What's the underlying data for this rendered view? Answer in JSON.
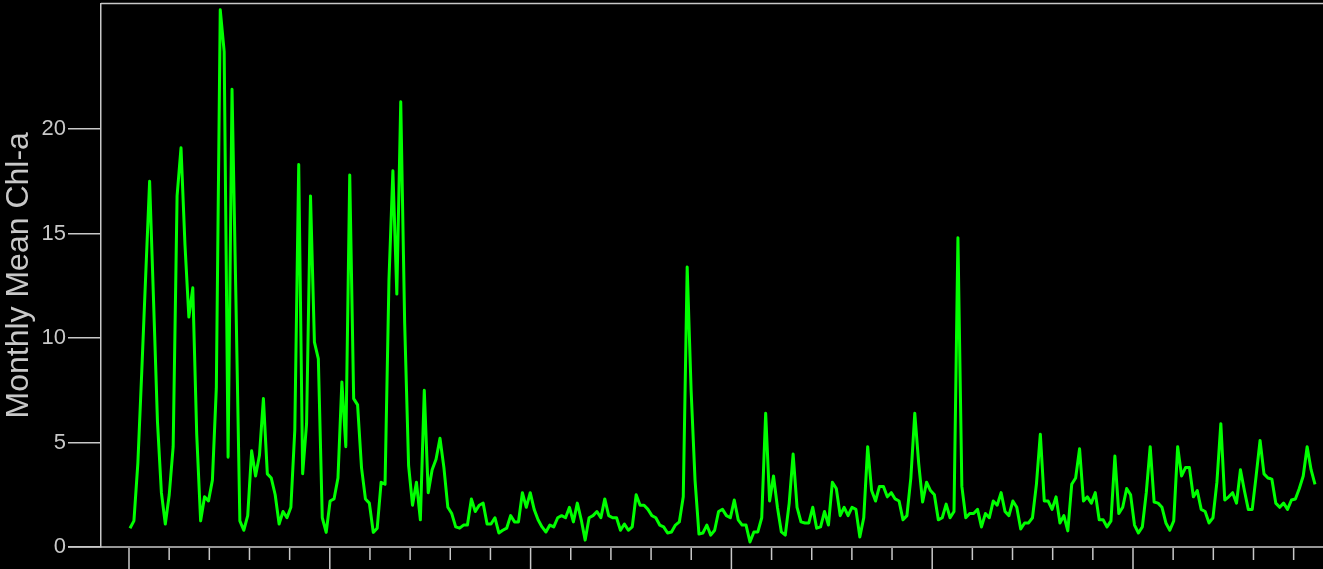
{
  "chart_data": {
    "type": "line",
    "ylabel": "Monthly Mean Chl-a",
    "color": "#00ff00",
    "marker": "none",
    "tick_labels": "y",
    "ylim": [
      0,
      26
    ],
    "categories": [
      null,
      null,
      null,
      null,
      null,
      null,
      null,
      null,
      null,
      null,
      null,
      null,
      null,
      null,
      null,
      null,
      null,
      null,
      null,
      null,
      null,
      null,
      null,
      null,
      null,
      null,
      null,
      null,
      null,
      null,
      null,
      null,
      null,
      null,
      null,
      null,
      null,
      null,
      null,
      null,
      null,
      null,
      null,
      null,
      null,
      null,
      null,
      null,
      null,
      null,
      null,
      null,
      null,
      null,
      null,
      null,
      null,
      null,
      null,
      null,
      null,
      null,
      null,
      null,
      null,
      null,
      null,
      null,
      null,
      null,
      null,
      null,
      null,
      null,
      null,
      null,
      null,
      null,
      null,
      null,
      null,
      null,
      null,
      null,
      null,
      null,
      null,
      null,
      null,
      null,
      null,
      null,
      null,
      null,
      null,
      null,
      null,
      null,
      null,
      null,
      null,
      null,
      null,
      null,
      null,
      null,
      null,
      null,
      null,
      null,
      null,
      null,
      null,
      null,
      null,
      null,
      null,
      null,
      null,
      null,
      null,
      null,
      null,
      null,
      null,
      null,
      null,
      null,
      null,
      null,
      null,
      null,
      null,
      null,
      null,
      null,
      null,
      null,
      null,
      null,
      null,
      null,
      null,
      null,
      null,
      null,
      null,
      null,
      null,
      null,
      null,
      null,
      null,
      null,
      null,
      null,
      null,
      null,
      null,
      null,
      null,
      null,
      null,
      null,
      null,
      null,
      null,
      null,
      null,
      null,
      null,
      null,
      null,
      null,
      null,
      null,
      null,
      null,
      null,
      null,
      null,
      null,
      null,
      null,
      null,
      null,
      null,
      null,
      null,
      null,
      null,
      null,
      null,
      null,
      null,
      null,
      null,
      null,
      null,
      null,
      null,
      null,
      null,
      null,
      null,
      null,
      null,
      null,
      null,
      null,
      null,
      null,
      null,
      null,
      null,
      null,
      null,
      null,
      null,
      null,
      null,
      null,
      null,
      null,
      null,
      null,
      null,
      null,
      null,
      null,
      null,
      null,
      null,
      null,
      null,
      null,
      null,
      null,
      null,
      null,
      null,
      null,
      null,
      null,
      null,
      null,
      null,
      null,
      null,
      null,
      null,
      null,
      null,
      null,
      null,
      null,
      null,
      null,
      null,
      null,
      null,
      null,
      null,
      null,
      null,
      null,
      null,
      null,
      null,
      null,
      null,
      null,
      null,
      null,
      null,
      null,
      null,
      null,
      null,
      null,
      null,
      null,
      null,
      null,
      null,
      null,
      null,
      null,
      null,
      null,
      null,
      null,
      null,
      null,
      null,
      null,
      null,
      null,
      null,
      null,
      null,
      null,
      null
    ],
    "yticks": [
      0,
      5,
      10,
      15,
      20
    ],
    "values": [
      0.9,
      1.25,
      4.0,
      8.4,
      13,
      17.5,
      11.8,
      6.0,
      2.6,
      1.1,
      2.5,
      4.8,
      16.8,
      19.1,
      14.5,
      11,
      12.4,
      5.4,
      1.25,
      2.4,
      2.2,
      3.2,
      7.6,
      25.7,
      23.7,
      4.3,
      21.9,
      11.8,
      1.25,
      0.8,
      1.5,
      4.6,
      3.4,
      4.4,
      7.1,
      3.5,
      3.3,
      2.5,
      1.1,
      1.7,
      1.4,
      1.9,
      5.6,
      18.3,
      3.5,
      5.9,
      16.8,
      9.8,
      9.0,
      1.4,
      0.7,
      2.2,
      2.3,
      3.3,
      7.9,
      4.8,
      17.8,
      7.1,
      6.8,
      3.8,
      2.3,
      2.1,
      0.7,
      0.9,
      3.1,
      3.0,
      12.8,
      18.0,
      12.1,
      21.3,
      10.7,
      3.9,
      2.0,
      3.1,
      1.3,
      7.5,
      2.6,
      3.7,
      4.2,
      5.2,
      3.8,
      1.9,
      1.6,
      0.96,
      0.9,
      1.05,
      1.05,
      2.3,
      1.7,
      2.0,
      2.1,
      1.1,
      1.1,
      1.4,
      0.67,
      0.8,
      0.9,
      1.5,
      1.2,
      1.2,
      2.6,
      1.9,
      2.6,
      1.8,
      1.3,
      0.96,
      0.72,
      1.05,
      0.96,
      1.4,
      1.5,
      1.4,
      1.9,
      1.2,
      2.1,
      1.3,
      0.33,
      1.4,
      1.5,
      1.7,
      1.4,
      2.3,
      1.5,
      1.4,
      1.4,
      0.8,
      1.1,
      0.8,
      0.96,
      2.5,
      2.0,
      2.0,
      1.8,
      1.5,
      1.4,
      1.05,
      0.96,
      0.67,
      0.72,
      1.05,
      1.2,
      2.4,
      13.4,
      7.5,
      3.2,
      0.62,
      0.67,
      1.05,
      0.57,
      0.8,
      1.7,
      1.8,
      1.5,
      1.4,
      2.25,
      1.3,
      1.05,
      1.05,
      0.24,
      0.72,
      0.72,
      1.4,
      6.4,
      2.2,
      3.4,
      1.9,
      0.72,
      0.57,
      2.1,
      4.45,
      1.9,
      1.2,
      1.15,
      1.15,
      1.9,
      0.9,
      0.96,
      1.7,
      1.05,
      3.1,
      2.8,
      1.5,
      1.9,
      1.5,
      1.9,
      1.8,
      0.48,
      1.4,
      4.8,
      2.7,
      2.2,
      2.9,
      2.9,
      2.4,
      2.6,
      2.3,
      2.2,
      1.3,
      1.5,
      3.3,
      6.4,
      4.0,
      2.15,
      3.1,
      2.7,
      2.5,
      1.3,
      1.4,
      2.05,
      1.4,
      1.7,
      14.8,
      2.9,
      1.4,
      1.6,
      1.6,
      1.8,
      0.96,
      1.6,
      1.4,
      2.2,
      2.0,
      2.6,
      1.7,
      1.5,
      2.2,
      1.9,
      0.86,
      1.15,
      1.15,
      1.4,
      3.0,
      5.4,
      2.2,
      2.2,
      1.8,
      2.4,
      1.15,
      1.5,
      0.77,
      3.0,
      3.3,
      4.7,
      2.2,
      2.4,
      2.1,
      2.6,
      1.3,
      1.3,
      0.96,
      1.25,
      4.35,
      1.6,
      1.9,
      2.8,
      2.5,
      1.05,
      0.67,
      0.96,
      2.6,
      4.8,
      2.15,
      2.1,
      1.9,
      1.15,
      0.8,
      1.25,
      4.8,
      3.4,
      3.8,
      3.8,
      2.4,
      2.7,
      1.8,
      1.7,
      1.15,
      1.4,
      3.1,
      5.9,
      2.25,
      2.4,
      2.6,
      2.1,
      3.7,
      2.7,
      1.8,
      1.8,
      3.4,
      5.1,
      3.5,
      3.3,
      3.25,
      2.1,
      1.9,
      2.1,
      1.8,
      2.25,
      2.3,
      2.8,
      3.4,
      4.8,
      3.7,
      3.0
    ]
  }
}
